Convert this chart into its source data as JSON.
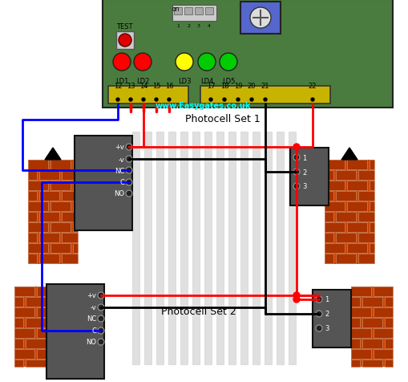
{
  "bg_color": "#ffffff",
  "pcb_color": "#4a7c3f",
  "terminal_color": "#c8b400",
  "led_colors": [
    "#ff0000",
    "#ff0000",
    "#ffff00",
    "#00cc00",
    "#00cc00"
  ],
  "led_labels": [
    "LD1",
    "LD2",
    "LD3",
    "LD4",
    "LD5"
  ],
  "terminal1_labels": [
    "12",
    "13",
    "14",
    "15",
    "16"
  ],
  "terminal2_labels": [
    "17",
    "18",
    "19",
    "20",
    "21",
    "22"
  ],
  "left_pc_labels": [
    "+v",
    "-v",
    "NC",
    "C",
    "NO"
  ],
  "right_pc_labels": [
    "1",
    "2",
    "3"
  ],
  "photocell_set1_label": "Photocell Set 1",
  "photocell_set2_label": "Photocell Set 2",
  "website": "www.Easygates.co.uk",
  "wire_red": "#ff0000",
  "wire_blue": "#0000ff",
  "wire_black": "#000000",
  "relay_color": "#5566cc",
  "dip_color": "#bbbbbb",
  "pc_box_color": "#555555",
  "brick_color": "#aa3300",
  "brick_line": "#cc8866",
  "gate_color": "#e0e0e0",
  "gate_edge": "#cccccc"
}
